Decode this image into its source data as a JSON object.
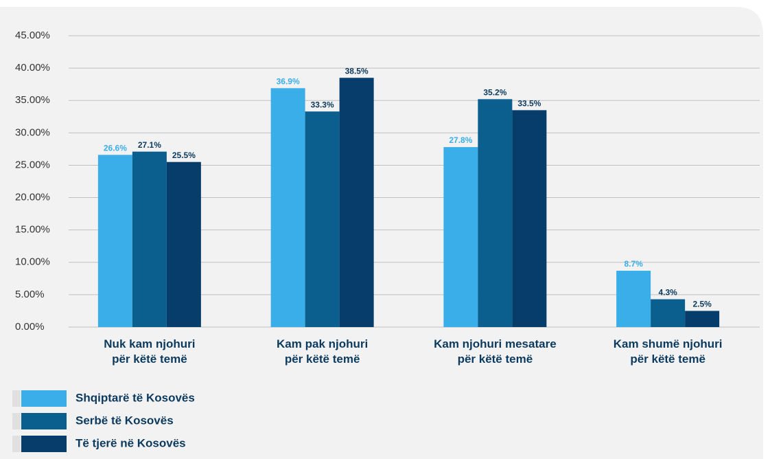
{
  "chart_data": {
    "type": "bar",
    "categories": [
      [
        "Nuk kam njohuri",
        "për këtë temë"
      ],
      [
        "Kam pak njohuri",
        "për këtë temë"
      ],
      [
        "Kam njohuri mesatare",
        "për këtë temë"
      ],
      [
        "Kam shumë njohuri",
        "për këtë temë"
      ]
    ],
    "series": [
      {
        "name": "Shqiptarë të Kosovës",
        "color": "#3aaee8",
        "label_color": "#3aaee8",
        "values": [
          26.6,
          36.9,
          27.8,
          8.7
        ],
        "value_labels": [
          "26.6%",
          "36.9%",
          "27.8%",
          "8.7%"
        ]
      },
      {
        "name": "Serbë të Kosovës",
        "color": "#0a5f8f",
        "label_color": "#0b3a5e",
        "values": [
          27.1,
          33.3,
          35.2,
          4.3
        ],
        "value_labels": [
          "27.1%",
          "33.3%",
          "35.2%",
          "4.3%"
        ]
      },
      {
        "name": "Të tjerë në Kosovës",
        "color": "#063d6b",
        "label_color": "#0b3a5e",
        "values": [
          25.5,
          38.5,
          33.5,
          2.5
        ],
        "value_labels": [
          "25.5%",
          "38.5%",
          "33.5%",
          "2.5%"
        ]
      }
    ],
    "ylim": [
      0,
      45
    ],
    "yticks": [
      {
        "value": 0,
        "label": "0.00%"
      },
      {
        "value": 5,
        "label": "5.00%"
      },
      {
        "value": 10,
        "label": "10.00%"
      },
      {
        "value": 15,
        "label": "15.00%"
      },
      {
        "value": 20,
        "label": "20.00%"
      },
      {
        "value": 25,
        "label": "25.00%"
      },
      {
        "value": 30,
        "label": "30.00%"
      },
      {
        "value": 35,
        "label": "35.00%"
      },
      {
        "value": 40,
        "label": "40.00%"
      },
      {
        "value": 45,
        "label": "45.00%"
      }
    ],
    "grid": true
  }
}
